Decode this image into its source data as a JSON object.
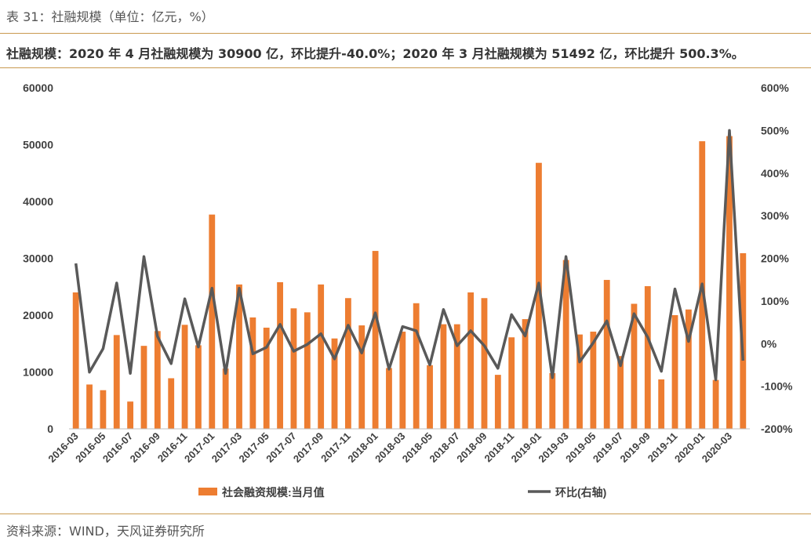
{
  "caption": "表 31：社融规模（单位：亿元，%）",
  "summary": "社融规模：2020 年 4 月社融规模为 30900 亿，环比提升-40.0%；2020 年 3 月社融规模为 51492 亿，环比提升 500.3%。",
  "source": "资料来源：WIND，天风证券研究所",
  "chart_data": {
    "type": "bar+line",
    "months": [
      "2016-03",
      "2016-04",
      "2016-05",
      "2016-06",
      "2016-07",
      "2016-08",
      "2016-09",
      "2016-10",
      "2016-11",
      "2016-12",
      "2017-01",
      "2017-02",
      "2017-03",
      "2017-04",
      "2017-05",
      "2017-06",
      "2017-07",
      "2017-08",
      "2017-09",
      "2017-10",
      "2017-11",
      "2017-12",
      "2018-01",
      "2018-02",
      "2018-03",
      "2018-04",
      "2018-05",
      "2018-06",
      "2018-07",
      "2018-08",
      "2018-09",
      "2018-10",
      "2018-11",
      "2018-12",
      "2019-01",
      "2019-02",
      "2019-03",
      "2019-04",
      "2019-05",
      "2019-06",
      "2019-07",
      "2019-08",
      "2019-09",
      "2019-10",
      "2019-11",
      "2019-12",
      "2020-01",
      "2020-02",
      "2020-03",
      "2020-04"
    ],
    "tick_labels": [
      "2016-03",
      "2016-05",
      "2016-07",
      "2016-09",
      "2016-11",
      "2017-01",
      "2017-03",
      "2017-05",
      "2017-07",
      "2017-09",
      "2017-11",
      "2018-01",
      "2018-03",
      "2018-05",
      "2018-07",
      "2018-09",
      "2018-11",
      "2019-01",
      "2019-03",
      "2019-05",
      "2019-07",
      "2019-09",
      "2019-11",
      "2020-01",
      "2020-03"
    ],
    "series": [
      {
        "name": "社会融资规模:当月值",
        "kind": "bar",
        "axis": "left",
        "color": "#ed7d31",
        "values": [
          24000,
          7800,
          6800,
          16500,
          4800,
          14600,
          17200,
          8900,
          18300,
          14700,
          37700,
          10600,
          25400,
          19600,
          17800,
          25800,
          21200,
          20500,
          25400,
          15900,
          23000,
          18200,
          31300,
          10700,
          17100,
          22100,
          11200,
          18400,
          18400,
          24000,
          23000,
          9500,
          16100,
          19300,
          46800,
          9800,
          29700,
          16600,
          17100,
          26200,
          12800,
          22000,
          25100,
          8700,
          20000,
          21000,
          50600,
          8600,
          51500,
          30900
        ]
      },
      {
        "name": "环比(右轴)",
        "kind": "line",
        "axis": "right",
        "color": "#595959",
        "values": [
          188,
          -67,
          -12,
          142,
          -70,
          204,
          17,
          -47,
          105,
          -8,
          130,
          -70,
          130,
          -24,
          -9,
          45,
          -18,
          -2,
          23,
          -36,
          43,
          -22,
          72,
          -60,
          40,
          30,
          -50,
          80,
          -5,
          30,
          -5,
          -58,
          68,
          18,
          142,
          -80,
          204,
          -43,
          2,
          53,
          -52,
          70,
          15,
          -65,
          128,
          5,
          140,
          -85,
          500,
          -40
        ]
      }
    ],
    "y_left": {
      "min": 0,
      "max": 60000,
      "ticks": [
        "0",
        "10000",
        "20000",
        "30000",
        "40000",
        "50000",
        "60000"
      ]
    },
    "y_right": {
      "min": -200,
      "max": 600,
      "ticks": [
        "-200%",
        "-100%",
        "0%",
        "100%",
        "200%",
        "300%",
        "400%",
        "500%",
        "600%"
      ]
    },
    "legend_placement": "bottom",
    "grid": false
  }
}
